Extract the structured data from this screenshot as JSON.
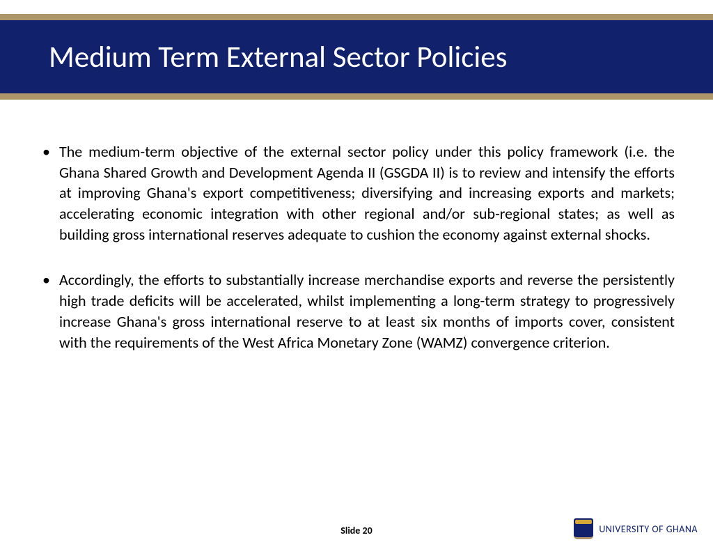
{
  "title": "Medium Term External Sector Policies",
  "bullets": [
    "The medium-term objective of the external sector policy under this policy framework (i.e. the Ghana Shared Growth and Development Agenda II (GSGDA II) is to review and intensify the efforts at improving Ghana's export competitiveness; diversifying and increasing exports and markets; accelerating economic integration with other regional and/or sub-regional states; as well as building gross international reserves adequate to cushion the economy against external shocks.",
    " Accordingly, the efforts to substantially increase merchandise exports and reverse the persistently high trade deficits will be accelerated, whilst implementing a long-term strategy to progressively increase Ghana's gross international reserve to at least six months of imports cover, consistent with the requirements of the West Africa Monetary Zone (WAMZ) convergence criterion."
  ],
  "slide_label": "Slide 20",
  "university": "UNIVERSITY OF GHANA",
  "colors": {
    "title_bg": "#11216c",
    "border_gold": "#ae9569",
    "title_text": "#ffffff",
    "body_text": "#000000",
    "uni_text": "#11216c"
  },
  "typography": {
    "title_fontsize": 43,
    "body_fontsize": 22,
    "slide_label_fontsize": 14,
    "uni_fontsize": 14
  }
}
